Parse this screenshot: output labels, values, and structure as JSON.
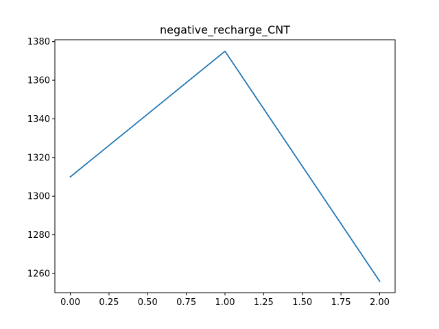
{
  "chart_data": {
    "type": "line",
    "title": "negative_recharge_CNT",
    "xlabel": "",
    "ylabel": "",
    "x": [
      0,
      1,
      2
    ],
    "series": [
      {
        "values": [
          1310,
          1375,
          1256
        ],
        "color": "#1f77b4"
      }
    ],
    "xlim": [
      -0.1,
      2.1
    ],
    "ylim": [
      1250.05,
      1380.95
    ],
    "xticks": [
      0.0,
      0.25,
      0.5,
      0.75,
      1.0,
      1.25,
      1.5,
      1.75,
      2.0
    ],
    "xtick_labels": [
      "0.00",
      "0.25",
      "0.50",
      "0.75",
      "1.00",
      "1.25",
      "1.50",
      "1.75",
      "2.00"
    ],
    "yticks": [
      1260,
      1280,
      1300,
      1320,
      1340,
      1360,
      1380
    ],
    "ytick_labels": [
      "1260",
      "1280",
      "1300",
      "1320",
      "1340",
      "1360",
      "1380"
    ],
    "grid": false,
    "legend": "none"
  }
}
